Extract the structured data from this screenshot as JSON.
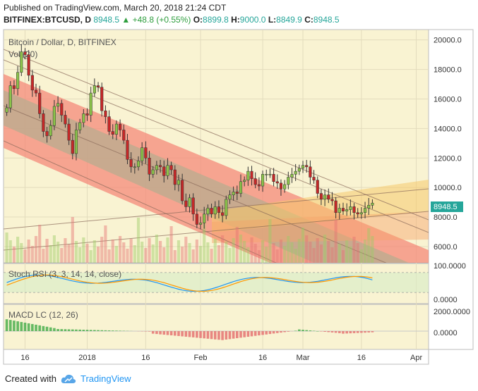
{
  "header": {
    "published": "Published on TradingView.com, March 20, 2018 21:24 CDT",
    "symbol": "BITFINEX:BTCUSD, D",
    "last": "8948.5",
    "change_arrow": "▲",
    "change": "+48.8 (+0.55%)",
    "open_label": "O:",
    "open": "8899.8",
    "high_label": "H:",
    "high": "9000.0",
    "low_label": "L:",
    "low": "8849.9",
    "close_label": "C:",
    "close": "8948.5"
  },
  "main_pane": {
    "title": "Bitcoin / Dollar, D, BITFINEX",
    "volume_label": "Vol (20)",
    "price_tag": "8948.5"
  },
  "stoch_pane": {
    "label": "Stoch RSI (3, 3, 14, 14, close)",
    "ticks": [
      "100.0000",
      "0.0000"
    ]
  },
  "macd_pane": {
    "label": "MACD LC (12, 26)",
    "ticks": [
      "2000.0000",
      "0.0000"
    ]
  },
  "footer": {
    "created": "Created with",
    "brand": "TradingView"
  },
  "colors": {
    "up": "#26a69a",
    "down": "#d32f2f",
    "candle_up_body": "#8bc34a",
    "candle_down_body": "#c62828",
    "pane_bg": "#f9f3d2",
    "channel_red": "#f48a7a",
    "channel_gray": "#b5ad8f"
  },
  "chart_data": {
    "type": "candlestick",
    "title": "Bitcoin / Dollar, D, BITFINEX",
    "y_ticks": [
      6000,
      8000,
      10000,
      12000,
      14000,
      16000,
      18000,
      20000
    ],
    "ylim": [
      4900,
      20700
    ],
    "x_ticks": [
      "16",
      "2018",
      "16",
      "Feb",
      "16",
      "Mar",
      "16",
      "Apr"
    ],
    "close_series": [
      15400,
      16900,
      16700,
      17800,
      19200,
      19000,
      17600,
      16600,
      16400,
      15000,
      13800,
      13500,
      14200,
      15500,
      15700,
      14900,
      14300,
      13200,
      12300,
      13900,
      14400,
      15000,
      14900,
      16400,
      16900,
      16800,
      15200,
      14800,
      13800,
      13600,
      14300,
      13900,
      13200,
      11900,
      11400,
      11400,
      11800,
      12700,
      12000,
      10900,
      11200,
      11500,
      11400,
      10800,
      11500,
      11200,
      10200,
      10500,
      9100,
      8700,
      9300,
      8200,
      7500,
      7600,
      8200,
      8600,
      8200,
      8700,
      8300,
      8100,
      9200,
      9500,
      9700,
      9600,
      10400,
      10500,
      11100,
      10600,
      10200,
      10100,
      10900,
      10900,
      10900,
      10400,
      10300,
      9900,
      10200,
      10700,
      10900,
      11100,
      11300,
      11500,
      11400,
      10700,
      10500,
      9600,
      9200,
      9500,
      9200,
      9100,
      8300,
      8600,
      8400,
      8500,
      8700,
      8300,
      8200,
      8300,
      8600,
      8800,
      8948.5
    ],
    "current_price": 8948.5,
    "stoch_rsi_range": [
      0,
      100
    ],
    "macd_range": [
      -1500,
      2500
    ]
  }
}
